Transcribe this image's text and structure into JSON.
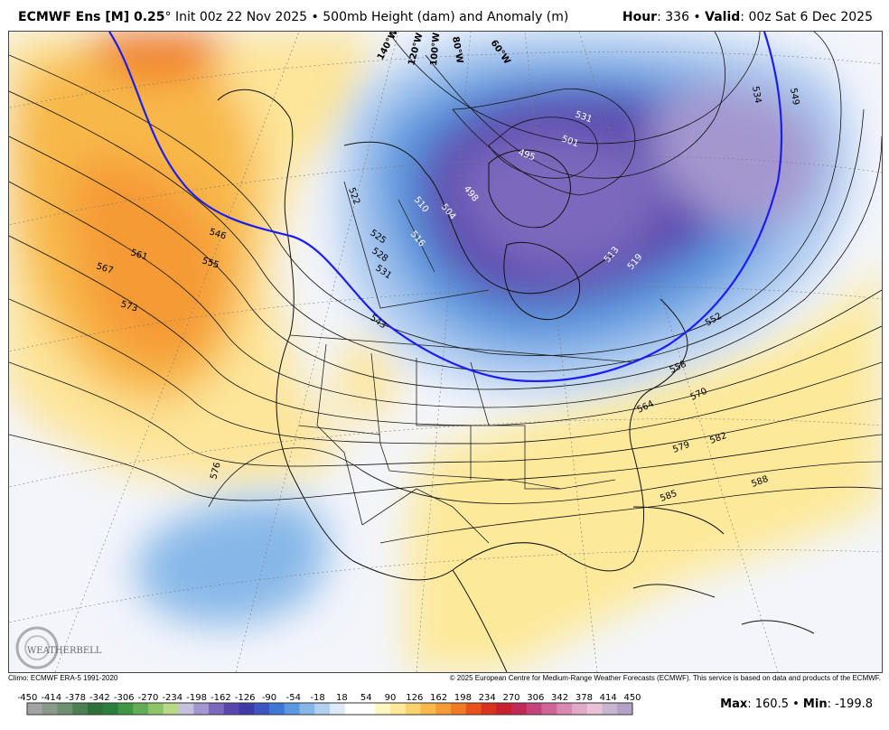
{
  "header": {
    "model": "ECMWF Ens [M] 0.25",
    "degree": "°",
    "init_text": " Init 00z 22 Nov 2025 • 500mb Height (dam) and Anomaly (m)",
    "hour_label": "Hour",
    "hour_value": ": 336 • ",
    "valid_label": "Valid",
    "valid_value": ": 00z Sat 6 Dec 2025"
  },
  "map": {
    "longitude_labels": [
      "140°W",
      "120°W",
      "100°W",
      "80°W",
      "60°W"
    ],
    "contour_labels": [
      "546",
      "561",
      "567",
      "573",
      "555",
      "576",
      "543",
      "531",
      "528",
      "525",
      "522",
      "510",
      "516",
      "504",
      "498",
      "495",
      "501",
      "531",
      "519",
      "513",
      "534",
      "549",
      "552",
      "558",
      "564",
      "570",
      "579",
      "582",
      "585",
      "588"
    ],
    "logo_text": "WEATHERBELL",
    "anomaly_colors": {
      "ridge": "#f6a13c",
      "ridge_light": "#fde59a",
      "trough": "#5a4fc0",
      "trough_light": "#a9c8ef"
    }
  },
  "footer": {
    "climo": "Climo: ECMWF ERA-5 1991-2020",
    "copyright": "© 2025 European Centre for Medium-Range Weather Forecasts (ECMWF). This service is based on data and products of the ECMWF."
  },
  "colorbar": {
    "ticks": [
      "-450",
      "-414",
      "-378",
      "-342",
      "-306",
      "-270",
      "-234",
      "-198",
      "-162",
      "-126",
      "-90",
      "-54",
      "-18",
      "18",
      "54",
      "90",
      "126",
      "162",
      "198",
      "234",
      "270",
      "306",
      "342",
      "378",
      "414",
      "450"
    ],
    "colors": [
      "#a3a3a3",
      "#8a9a8a",
      "#6f8f72",
      "#4d7f55",
      "#2e6f3c",
      "#2a7f3a",
      "#3f9645",
      "#62ad55",
      "#8fc46a",
      "#b9d98a",
      "#c7c1e0",
      "#a497cf",
      "#7c69bd",
      "#5a47ad",
      "#3f3aa6",
      "#3b55c2",
      "#3f77d4",
      "#5a98df",
      "#86b7e8",
      "#b2d1f0",
      "#dde9f7",
      "#ffffff",
      "#ffffff",
      "#fff7c2",
      "#fde99a",
      "#fbd36c",
      "#f8b84a",
      "#f59a34",
      "#f07a25",
      "#e8521a",
      "#db3220",
      "#c8202e",
      "#c02a55",
      "#c4437a",
      "#cf6497",
      "#d988b2",
      "#e3a8c7",
      "#e9c2d6",
      "#c8b4d0",
      "#b3a2c6"
    ],
    "max_label": "Max",
    "max_value": ": 160.5 • ",
    "min_label": "Min",
    "min_value": ": -199.8"
  }
}
